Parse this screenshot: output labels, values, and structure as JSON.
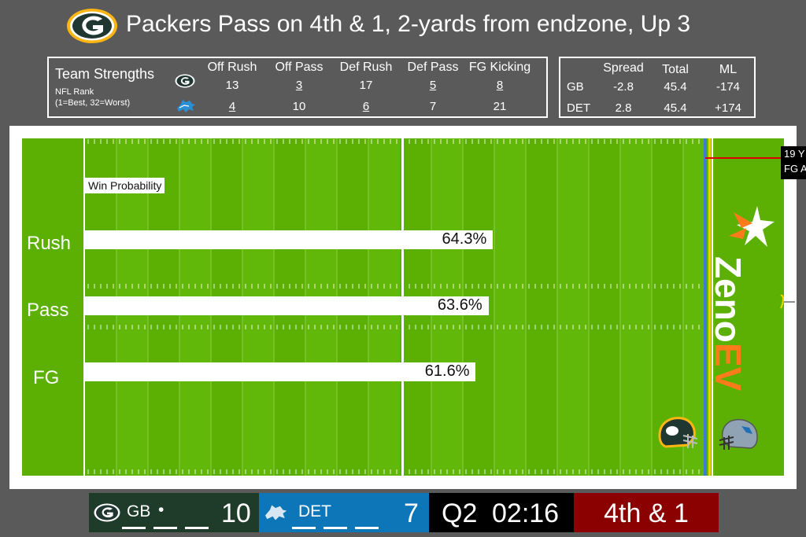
{
  "header": {
    "title": "Packers Pass on 4th & 1, 2-yards from endzone, Up 3"
  },
  "strengths": {
    "title": "Team Strengths",
    "subtitle1": "NFL Rank",
    "subtitle2": "(1=Best, 32=Worst)",
    "columns": [
      "Off Rush",
      "Off Pass",
      "Def Rush",
      "Def Pass",
      "FG Kicking"
    ],
    "gb": [
      "13",
      "3",
      "17",
      "5",
      "8"
    ],
    "det": [
      "4",
      "10",
      "6",
      "7",
      "21"
    ]
  },
  "odds": {
    "columns": [
      "Spread",
      "Total",
      "ML"
    ],
    "gb_label": "GB",
    "det_label": "DET",
    "gb": [
      "-2.8",
      "45.4",
      "-174"
    ],
    "det": [
      "2.8",
      "45.4",
      "+174"
    ]
  },
  "field": {
    "wp_label": "Win Probability",
    "fg_box_line1": "19 Y",
    "fg_box_line2": "FG A",
    "brand1": "Zeno",
    "brand2": "EV"
  },
  "chart_data": {
    "type": "bar",
    "orientation": "horizontal",
    "title": "Win Probability",
    "categories": [
      "Rush",
      "Pass",
      "FG"
    ],
    "values": [
      64.3,
      63.6,
      61.6
    ],
    "value_labels": [
      "64.3%",
      "63.6%",
      "61.6%"
    ],
    "xlim": [
      0,
      100
    ],
    "xlabel": "",
    "ylabel": ""
  },
  "scoreboard": {
    "gb_abbr": "GB",
    "gb_possession": "•",
    "gb_score": "10",
    "det_abbr": "DET",
    "det_score": "7",
    "quarter": "Q2",
    "clock": "02:16",
    "down_distance": "4th & 1"
  },
  "colors": {
    "packers_green": "#203731",
    "packers_gold": "#ffb612",
    "lions_blue": "#0076b6",
    "field_green": "#5cb003",
    "down_red": "#8b0000"
  }
}
